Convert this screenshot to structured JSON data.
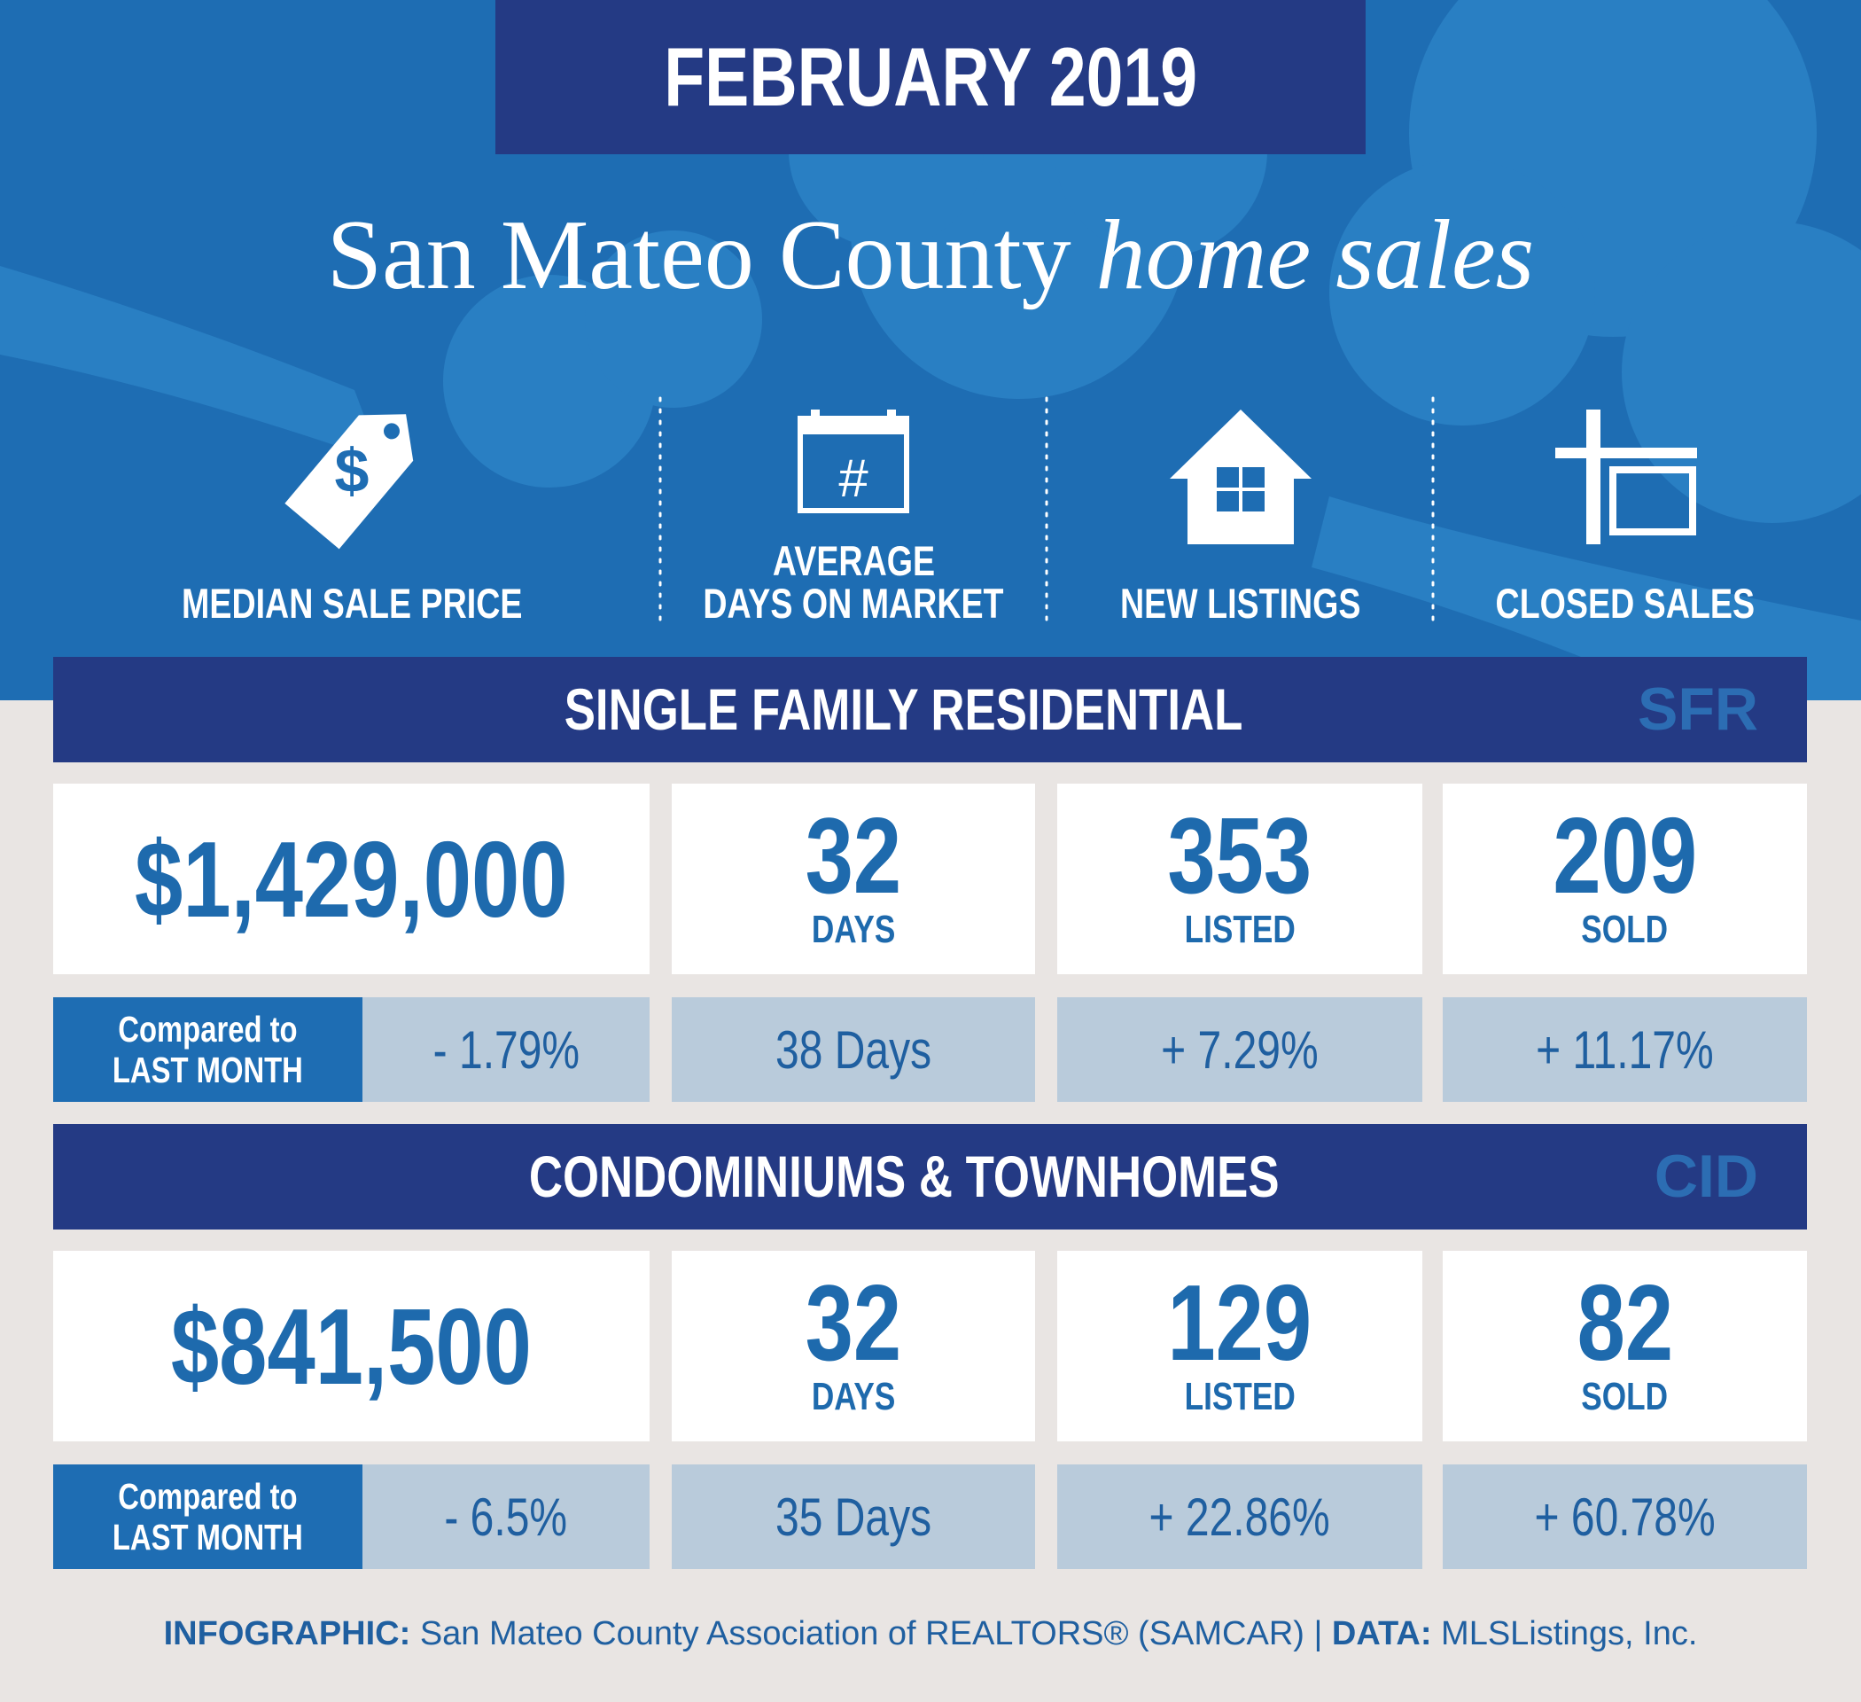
{
  "header": {
    "date": "FEBRUARY 2019",
    "title": "San Mateo County",
    "title_italic": "home sales"
  },
  "metrics": [
    {
      "lines": [
        "MEDIAN SALE PRICE"
      ]
    },
    {
      "lines": [
        "AVERAGE",
        "DAYS ON MARKET"
      ]
    },
    {
      "lines": [
        "NEW LISTINGS"
      ]
    },
    {
      "lines": [
        "CLOSED SALES"
      ]
    }
  ],
  "sections": [
    {
      "title": "SINGLE FAMILY RESIDENTIAL",
      "code": "SFR",
      "values": [
        {
          "value": "$1,429,000"
        },
        {
          "value": "32",
          "unit": "DAYS"
        },
        {
          "value": "353",
          "unit": "LISTED"
        },
        {
          "value": "209",
          "unit": "SOLD"
        }
      ],
      "compare_label": [
        "Compared to",
        "LAST MONTH"
      ],
      "changes": [
        "- 1.79%",
        "38 Days",
        "+ 7.29%",
        "+ 11.17%"
      ]
    },
    {
      "title": "CONDOMINIUMS & TOWNHOMES",
      "code": "CID",
      "values": [
        {
          "value": "$841,500"
        },
        {
          "value": "32",
          "unit": "DAYS"
        },
        {
          "value": "129",
          "unit": "LISTED"
        },
        {
          "value": "82",
          "unit": "SOLD"
        }
      ],
      "compare_label": [
        "Compared to",
        "LAST MONTH"
      ],
      "changes": [
        "- 6.5%",
        "35 Days",
        "+ 22.86%",
        "+ 60.78%"
      ]
    }
  ],
  "footer": {
    "infographic_label": "INFOGRAPHIC:",
    "infographic_text": "San Mateo County Association of REALTORS® (SAMCAR)",
    "separator": "|",
    "data_label": "DATA:",
    "data_text": "MLSListings, Inc."
  }
}
